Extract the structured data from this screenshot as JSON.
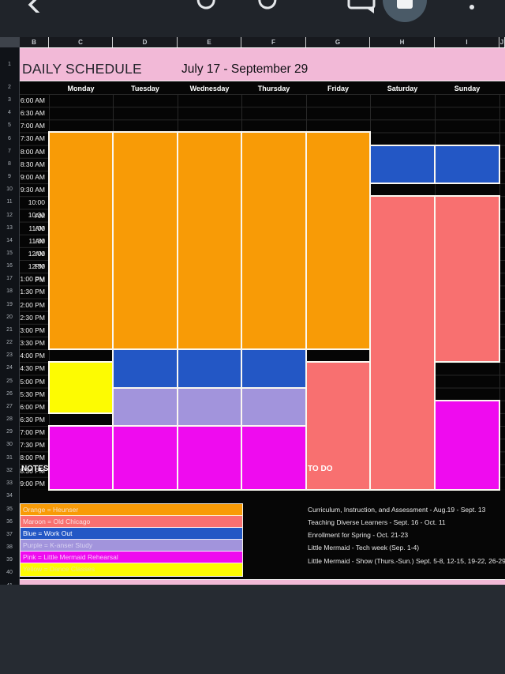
{
  "toolbar": {
    "icons": [
      "back-icon",
      "undo-icon",
      "redo-icon",
      "comment-icon",
      "account-icon",
      "more-icon"
    ]
  },
  "colors": {
    "orange": "#F89B06",
    "salmon": "#F87070",
    "blue": "#2357C5",
    "purple": "#A294DC",
    "magenta": "#EF0BEF",
    "yellow": "#FDFB02",
    "pink": "#F2B9D7",
    "black": "#050505"
  },
  "sheet": {
    "column_letters": [
      "B",
      "C",
      "D",
      "E",
      "F",
      "G",
      "H",
      "I",
      "J"
    ],
    "row_numbers": [
      1,
      2,
      3,
      4,
      5,
      6,
      7,
      8,
      9,
      10,
      11,
      12,
      13,
      14,
      15,
      16,
      17,
      18,
      19,
      20,
      21,
      22,
      23,
      24,
      25,
      26,
      27,
      28,
      29,
      30,
      31,
      32,
      33,
      34,
      35,
      36,
      37,
      38,
      39,
      40,
      41
    ],
    "title": "DAILY SCHEDULE",
    "date_range": "July 17 - September 29"
  },
  "schedule": {
    "days": [
      "Monday",
      "Tuesday",
      "Wednesday",
      "Thursday",
      "Friday",
      "Saturday",
      "Sunday"
    ],
    "times": [
      "6:00 AM",
      "6:30 AM",
      "7:00 AM",
      "7:30 AM",
      "8:00 AM",
      "8:30 AM",
      "9:00 AM",
      "9:30 AM",
      "10:00 AM",
      "10:30 AM",
      "11:00 AM",
      "11:30 AM",
      "12:00 PM",
      "12:30 PM",
      "1:00 PM",
      "1:30 PM",
      "2:00 PM",
      "2:30 PM",
      "3:00 PM",
      "3:30 PM",
      "4:00 PM",
      "4:30 PM",
      "5:00 PM",
      "5:30 PM",
      "6:00 PM",
      "6:30 PM",
      "7:00 PM",
      "7:30 PM",
      "8:00 PM",
      "8:30 PM",
      "9:00 PM"
    ],
    "columns": [
      {
        "day": "Monday",
        "blocks": [
          {
            "start_time": "7:30 AM",
            "end_time": "4:00 PM",
            "start": 3,
            "end": 20,
            "color": "orange"
          },
          {
            "start_time": "4:30 PM",
            "end_time": "6:30 PM",
            "start": 21,
            "end": 25,
            "color": "yellow"
          },
          {
            "start_time": "7:00 PM",
            "end_time": "9:30 PM",
            "start": 26,
            "end": 31,
            "color": "magenta"
          }
        ]
      },
      {
        "day": "Tuesday",
        "blocks": [
          {
            "start_time": "7:30 AM",
            "end_time": "4:00 PM",
            "start": 3,
            "end": 20,
            "color": "orange"
          },
          {
            "start_time": "4:00 PM",
            "end_time": "5:30 PM",
            "start": 20,
            "end": 23,
            "color": "blue"
          },
          {
            "start_time": "5:30 PM",
            "end_time": "7:00 PM",
            "start": 23,
            "end": 26,
            "color": "purple"
          },
          {
            "start_time": "7:00 PM",
            "end_time": "9:30 PM",
            "start": 26,
            "end": 31,
            "color": "magenta"
          }
        ]
      },
      {
        "day": "Wednesday",
        "blocks": [
          {
            "start_time": "7:30 AM",
            "end_time": "4:00 PM",
            "start": 3,
            "end": 20,
            "color": "orange"
          },
          {
            "start_time": "4:00 PM",
            "end_time": "5:30 PM",
            "start": 20,
            "end": 23,
            "color": "blue"
          },
          {
            "start_time": "5:30 PM",
            "end_time": "7:00 PM",
            "start": 23,
            "end": 26,
            "color": "purple"
          },
          {
            "start_time": "7:00 PM",
            "end_time": "9:30 PM",
            "start": 26,
            "end": 31,
            "color": "magenta"
          }
        ]
      },
      {
        "day": "Thursday",
        "blocks": [
          {
            "start_time": "7:30 AM",
            "end_time": "4:00 PM",
            "start": 3,
            "end": 20,
            "color": "orange"
          },
          {
            "start_time": "4:00 PM",
            "end_time": "5:30 PM",
            "start": 20,
            "end": 23,
            "color": "blue"
          },
          {
            "start_time": "5:30 PM",
            "end_time": "7:00 PM",
            "start": 23,
            "end": 26,
            "color": "purple"
          },
          {
            "start_time": "7:00 PM",
            "end_time": "9:30 PM",
            "start": 26,
            "end": 31,
            "color": "magenta"
          }
        ]
      },
      {
        "day": "Friday",
        "blocks": [
          {
            "start_time": "7:30 AM",
            "end_time": "4:00 PM",
            "start": 3,
            "end": 20,
            "color": "orange"
          },
          {
            "start_time": "4:30 PM",
            "end_time": "9:30 PM",
            "start": 21,
            "end": 31,
            "color": "salmon"
          }
        ]
      },
      {
        "day": "Saturday",
        "blocks": [
          {
            "start_time": "8:00 AM",
            "end_time": "9:30 AM",
            "start": 4,
            "end": 7,
            "color": "blue"
          },
          {
            "start_time": "10:00 AM",
            "end_time": "9:30 PM",
            "start": 8,
            "end": 31,
            "color": "salmon"
          }
        ]
      },
      {
        "day": "Sunday",
        "blocks": [
          {
            "start_time": "8:00 AM",
            "end_time": "9:30 AM",
            "start": 4,
            "end": 7,
            "color": "blue"
          },
          {
            "start_time": "10:00 AM",
            "end_time": "4:30 PM",
            "start": 8,
            "end": 21,
            "color": "salmon"
          },
          {
            "start_time": "6:00 PM",
            "end_time": "9:30 PM",
            "start": 24,
            "end": 31,
            "color": "magenta"
          }
        ]
      }
    ]
  },
  "notes": {
    "label": "NOTES",
    "legend": [
      {
        "text": "Orange = Heunser",
        "color": "orange",
        "text_color": "#F8E0CB"
      },
      {
        "text": "Maroon = Old Chicago",
        "color": "salmon",
        "text_color": "#FBE3E3"
      },
      {
        "text": "Blue = Work Out",
        "color": "blue",
        "text_color": "#FFFFFF"
      },
      {
        "text": "Purple = K-anser Study",
        "color": "purple",
        "text_color": "#D9D2F2"
      },
      {
        "text": "Pink = Little Mermaid Rehearsal",
        "color": "magenta",
        "text_color": "#FBC9FB"
      },
      {
        "text": "Yellow = Dance Classes",
        "color": "yellow",
        "text_color": "#EDE98E"
      }
    ]
  },
  "todo": {
    "label": "TO DO",
    "items": [
      "Curriculum, Instruction, and Assessment - Aug.19 - Sept. 13",
      "Teaching Diverse Learners - Sept. 16 - Oct. 11",
      "Enrollment for Spring - Oct. 21-23",
      "Little Mermaid - Tech week (Sep. 1-4)",
      "Little Mermaid - Show (Thurs.-Sun.) Sept. 5-8, 12-15, 19-22, 26-29"
    ]
  }
}
